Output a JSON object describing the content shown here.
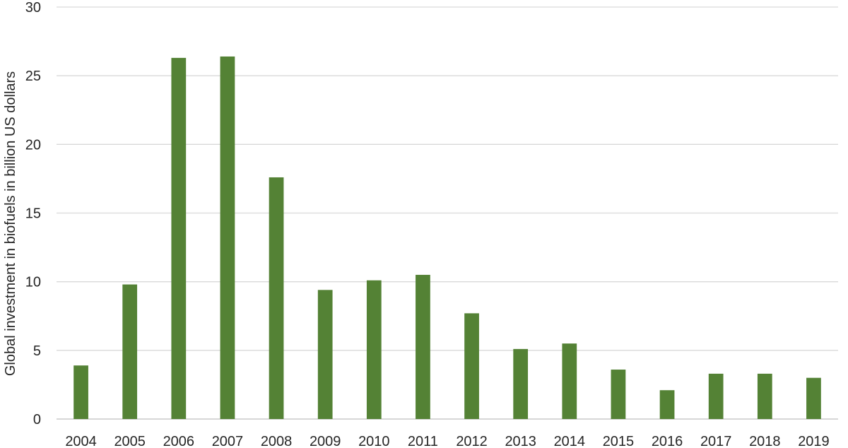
{
  "chart_data": {
    "type": "bar",
    "title": "",
    "xlabel": "",
    "ylabel": "Global investment in biofuels in billion US dollars",
    "categories": [
      "2004",
      "2005",
      "2006",
      "2007",
      "2008",
      "2009",
      "2010",
      "2011",
      "2012",
      "2013",
      "2014",
      "2015",
      "2016",
      "2017",
      "2018",
      "2019"
    ],
    "values": [
      3.9,
      9.8,
      26.3,
      26.4,
      17.6,
      9.4,
      10.1,
      10.5,
      7.7,
      5.1,
      5.5,
      3.6,
      2.1,
      3.3,
      3.3,
      3.0
    ],
    "ylim": [
      0,
      30
    ],
    "yticks": [
      0,
      5,
      10,
      15,
      20,
      25,
      30
    ],
    "grid": "horizontal",
    "legend": "none",
    "bar_color": "#548235",
    "grid_color": "#d9d9d9"
  }
}
